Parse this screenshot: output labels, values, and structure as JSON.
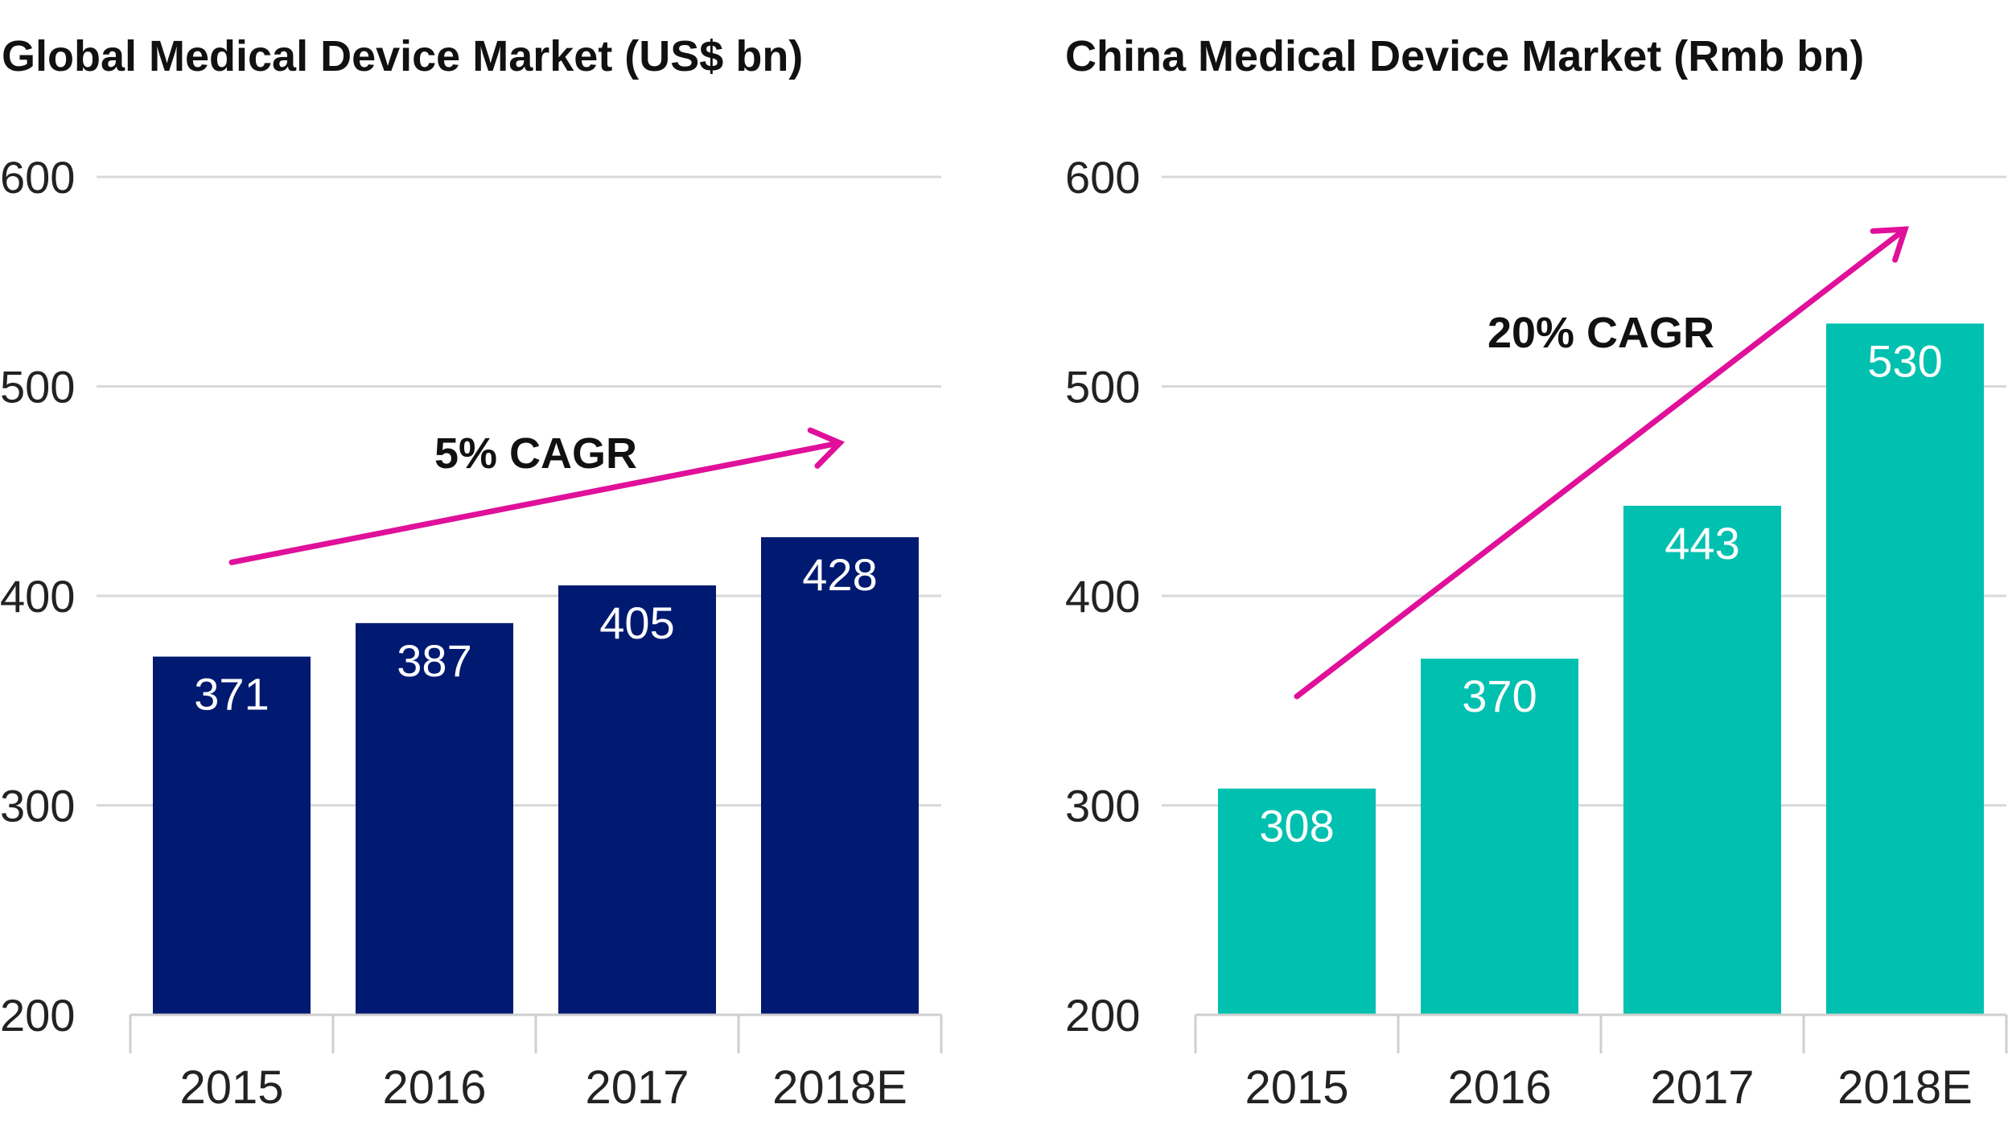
{
  "chart_data": [
    {
      "type": "bar",
      "title": "Global Medical Device Market (US$ bn)",
      "categories": [
        "2015",
        "2016",
        "2017",
        "2018E"
      ],
      "values": [
        371,
        387,
        405,
        428
      ],
      "value_labels": [
        "371",
        "387",
        "405",
        "428"
      ],
      "ylim": [
        200,
        600
      ],
      "yticks": [
        200,
        300,
        400,
        500,
        600
      ],
      "ytick_labels": [
        "200",
        "300",
        "400",
        "500",
        "600"
      ],
      "grid": true,
      "bar_color": "#001a72",
      "annotation": {
        "text": "5% CAGR",
        "arrow_from": {
          "category_index": 0,
          "value": 416
        },
        "arrow_to": {
          "category_index": 3,
          "value": 473
        }
      }
    },
    {
      "type": "bar",
      "title": "China Medical Device Market (Rmb bn)",
      "categories": [
        "2015",
        "2016",
        "2017",
        "2018E"
      ],
      "values": [
        308,
        370,
        443,
        530
      ],
      "value_labels": [
        "308",
        "370",
        "443",
        "530"
      ],
      "ylim": [
        200,
        600
      ],
      "yticks": [
        200,
        300,
        400,
        500,
        600
      ],
      "ytick_labels": [
        "200",
        "300",
        "400",
        "500",
        "600"
      ],
      "grid": true,
      "bar_color": "#00c0b0",
      "annotation": {
        "text": "20% CAGR",
        "arrow_from": {
          "category_index": 0,
          "value": 352
        },
        "arrow_to": {
          "category_index": 3,
          "value": 575
        }
      }
    }
  ],
  "colors": {
    "arrow": "#e0109a",
    "grid": "#d9d9d9",
    "text": "#111111",
    "value_text": "#ffffff"
  }
}
